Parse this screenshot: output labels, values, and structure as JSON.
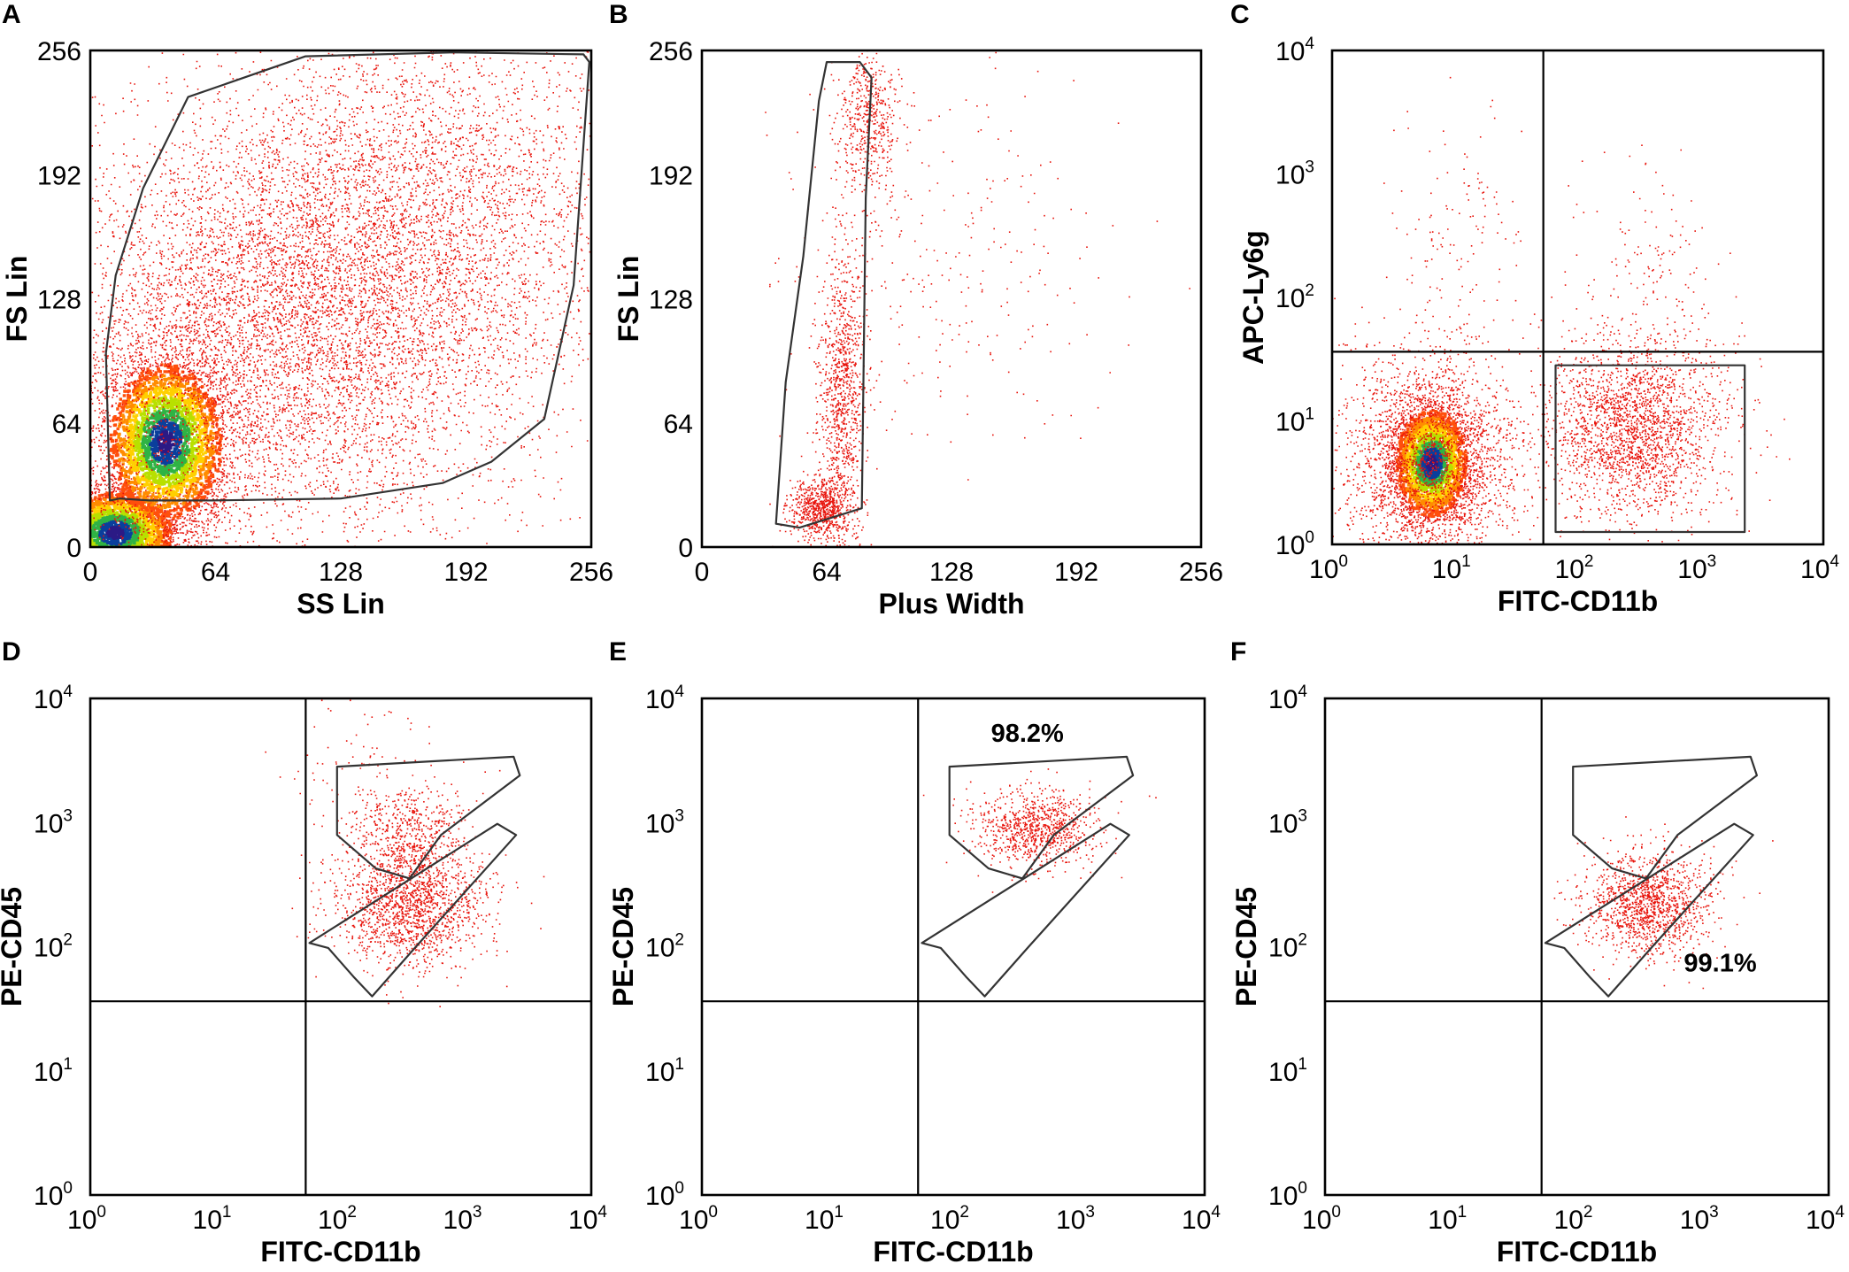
{
  "figure": {
    "colors": {
      "scatter": "#e8140c",
      "density": [
        "#ff4f0c",
        "#ff8c00",
        "#ffd000",
        "#b8e000",
        "#2fb344",
        "#0a3f9c",
        "#2b1a85"
      ],
      "line": "#000000",
      "gate": "#333333"
    },
    "panels": [
      {
        "id": "A",
        "letter": "A",
        "type": "scatter",
        "scale": "linear",
        "xlabel": "SS Lin",
        "ylabel": "FS Lin",
        "xlim": [
          0,
          256
        ],
        "ylim": [
          0,
          256
        ],
        "xticks": [
          "0",
          "64",
          "128",
          "192",
          "256"
        ],
        "yticks": [
          "0",
          "64",
          "128",
          "192",
          "256"
        ],
        "gates": [
          {
            "name": "cells-gate",
            "points": [
              [
                10,
                24
              ],
              [
                8,
                100
              ],
              [
                13,
                140
              ],
              [
                27,
                185
              ],
              [
                50,
                232
              ],
              [
                110,
                253
              ],
              [
                185,
                255
              ],
              [
                252,
                254
              ],
              [
                255,
                250
              ],
              [
                247,
                135
              ],
              [
                232,
                66
              ],
              [
                205,
                44
              ],
              [
                180,
                33
              ],
              [
                128,
                25
              ],
              [
                62,
                24
              ],
              [
                30,
                24
              ],
              [
                15,
                25
              ]
            ]
          }
        ],
        "clusters": [
          {
            "cx": 12,
            "cy": 8,
            "sx": 18,
            "sy": 13,
            "n": 3000,
            "density": true
          },
          {
            "cx": 38,
            "cy": 55,
            "sx": 18,
            "sy": 25,
            "n": 3500,
            "density": true
          },
          {
            "cx": 95,
            "cy": 110,
            "sx": 60,
            "sy": 55,
            "n": 6500,
            "density": false
          },
          {
            "cx": 170,
            "cy": 175,
            "sx": 55,
            "sy": 55,
            "n": 3500,
            "density": false
          }
        ]
      },
      {
        "id": "B",
        "letter": "B",
        "type": "scatter",
        "scale": "linear",
        "xlabel": "Plus Width",
        "ylabel": "FS Lin",
        "xlim": [
          0,
          256
        ],
        "ylim": [
          0,
          256
        ],
        "xticks": [
          "0",
          "64",
          "128",
          "192",
          "256"
        ],
        "yticks": [
          "0",
          "64",
          "128",
          "192",
          "256"
        ],
        "gates": [
          {
            "name": "singlets-gate",
            "points": [
              [
                64,
                250
              ],
              [
                81,
                250
              ],
              [
                87,
                242
              ],
              [
                84,
                180
              ],
              [
                82,
                20
              ],
              [
                50,
                10
              ],
              [
                38,
                12
              ],
              [
                43,
                85
              ],
              [
                52,
                150
              ],
              [
                60,
                230
              ]
            ]
          }
        ],
        "clusters": [
          {
            "cx": 60,
            "cy": 20,
            "sx": 8,
            "sy": 8,
            "n": 700,
            "density": false
          },
          {
            "cx": 72,
            "cy": 80,
            "sx": 6,
            "sy": 40,
            "n": 1000,
            "density": false
          },
          {
            "cx": 86,
            "cy": 220,
            "sx": 8,
            "sy": 20,
            "n": 500,
            "density": false
          },
          {
            "cx": 120,
            "cy": 150,
            "sx": 40,
            "sy": 50,
            "n": 300,
            "density": false
          }
        ]
      },
      {
        "id": "C",
        "letter": "C",
        "type": "scatter",
        "scale": "log",
        "xlabel": "FITC-CD11b",
        "ylabel": "APC-Ly6g",
        "xlim": [
          0,
          4
        ],
        "ylim": [
          0,
          4
        ],
        "xticks": [
          "0",
          "1",
          "2",
          "3",
          "4"
        ],
        "yticks": [
          "0",
          "1",
          "2",
          "3",
          "4"
        ],
        "quadrant": {
          "x": 1.72,
          "y": 1.56
        },
        "gates": [
          {
            "name": "cd11b-positive-gate",
            "points": [
              [
                1.82,
                1.45
              ],
              [
                3.36,
                1.45
              ],
              [
                3.36,
                0.1
              ],
              [
                1.82,
                0.1
              ]
            ]
          }
        ],
        "clusters": [
          {
            "cx": 0.8,
            "cy": 0.67,
            "sx": 0.18,
            "sy": 0.27,
            "n": 2400,
            "density": true
          },
          {
            "cx": 0.8,
            "cy": 0.68,
            "sx": 0.36,
            "sy": 0.43,
            "n": 2200,
            "density": false
          },
          {
            "cx": 2.45,
            "cy": 0.95,
            "sx": 0.36,
            "sy": 0.36,
            "n": 2200,
            "density": false
          },
          {
            "cx": 1.0,
            "cy": 2.4,
            "sx": 0.25,
            "sy": 0.6,
            "n": 140,
            "density": false
          },
          {
            "cx": 2.6,
            "cy": 2.2,
            "sx": 0.35,
            "sy": 0.5,
            "n": 160,
            "density": false
          }
        ]
      },
      {
        "id": "D",
        "letter": "D",
        "type": "scatter",
        "scale": "log",
        "xlabel": "FITC-CD11b",
        "ylabel": "PE-CD45",
        "xlim": [
          0,
          4
        ],
        "ylim": [
          0,
          4
        ],
        "xticks": [
          "0",
          "1",
          "2",
          "3",
          "4"
        ],
        "yticks": [
          "0",
          "1",
          "2",
          "3",
          "4"
        ],
        "quadrant": {
          "x": 1.72,
          "y": 1.56
        },
        "gates": [
          {
            "name": "upper-gate",
            "points": [
              [
                1.97,
                3.45
              ],
              [
                3.38,
                3.53
              ],
              [
                3.43,
                3.38
              ],
              [
                2.8,
                2.9
              ],
              [
                2.55,
                2.55
              ],
              [
                2.28,
                2.63
              ],
              [
                1.97,
                2.9
              ]
            ]
          },
          {
            "name": "lower-gate",
            "points": [
              [
                1.75,
                2.03
              ],
              [
                3.25,
                2.99
              ],
              [
                3.4,
                2.9
              ],
              [
                2.6,
                2.0
              ],
              [
                2.25,
                1.6
              ],
              [
                2.1,
                1.76
              ],
              [
                1.9,
                1.99
              ]
            ]
          }
        ],
        "clusters": [
          {
            "cx": 2.55,
            "cy": 2.95,
            "sx": 0.25,
            "sy": 0.18,
            "n": 500,
            "density": false
          },
          {
            "cx": 2.55,
            "cy": 2.35,
            "sx": 0.3,
            "sy": 0.25,
            "n": 1600,
            "density": false
          },
          {
            "cx": 2.3,
            "cy": 3.5,
            "sx": 0.4,
            "sy": 0.25,
            "n": 80,
            "density": false
          }
        ]
      },
      {
        "id": "E",
        "letter": "E",
        "type": "scatter",
        "scale": "log",
        "xlabel": "FITC-CD11b",
        "ylabel": "PE-CD45",
        "xlim": [
          0,
          4
        ],
        "ylim": [
          0,
          4
        ],
        "xticks": [
          "0",
          "1",
          "2",
          "3",
          "4"
        ],
        "yticks": [
          "0",
          "1",
          "2",
          "3",
          "4"
        ],
        "quadrant": {
          "x": 1.72,
          "y": 1.56
        },
        "gates": [
          {
            "name": "upper-gate",
            "points": [
              [
                1.97,
                3.45
              ],
              [
                3.38,
                3.53
              ],
              [
                3.43,
                3.38
              ],
              [
                2.8,
                2.9
              ],
              [
                2.55,
                2.55
              ],
              [
                2.28,
                2.63
              ],
              [
                1.97,
                2.9
              ]
            ]
          },
          {
            "name": "lower-gate",
            "points": [
              [
                1.75,
                2.03
              ],
              [
                3.25,
                2.99
              ],
              [
                3.4,
                2.9
              ],
              [
                2.6,
                2.0
              ],
              [
                2.25,
                1.6
              ],
              [
                2.1,
                1.76
              ],
              [
                1.9,
                1.99
              ]
            ]
          }
        ],
        "gate_label": {
          "text": "98.2%",
          "x": 2.3,
          "y": 3.65
        },
        "clusters": [
          {
            "cx": 2.65,
            "cy": 2.95,
            "sx": 0.25,
            "sy": 0.15,
            "n": 900,
            "density": false
          }
        ]
      },
      {
        "id": "F",
        "letter": "F",
        "type": "scatter",
        "scale": "log",
        "xlabel": "FITC-CD11b",
        "ylabel": "PE-CD45",
        "xlim": [
          0,
          4
        ],
        "ylim": [
          0,
          4
        ],
        "xticks": [
          "0",
          "1",
          "2",
          "3",
          "4"
        ],
        "yticks": [
          "0",
          "1",
          "2",
          "3",
          "4"
        ],
        "quadrant": {
          "x": 1.72,
          "y": 1.56
        },
        "gates": [
          {
            "name": "upper-gate",
            "points": [
              [
                1.97,
                3.45
              ],
              [
                3.38,
                3.53
              ],
              [
                3.43,
                3.38
              ],
              [
                2.8,
                2.9
              ],
              [
                2.55,
                2.55
              ],
              [
                2.28,
                2.63
              ],
              [
                1.97,
                2.9
              ]
            ]
          },
          {
            "name": "lower-gate",
            "points": [
              [
                1.75,
                2.03
              ],
              [
                3.25,
                2.99
              ],
              [
                3.4,
                2.9
              ],
              [
                2.6,
                2.0
              ],
              [
                2.25,
                1.6
              ],
              [
                2.1,
                1.76
              ],
              [
                1.9,
                1.99
              ]
            ]
          }
        ],
        "gate_label": {
          "text": "99.1%",
          "x": 2.85,
          "y": 1.8
        },
        "clusters": [
          {
            "cx": 2.55,
            "cy": 2.35,
            "sx": 0.25,
            "sy": 0.2,
            "n": 1300,
            "density": false
          }
        ]
      }
    ]
  }
}
